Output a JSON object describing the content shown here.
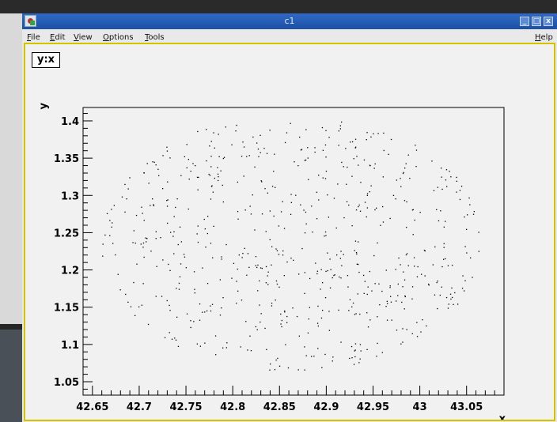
{
  "window": {
    "title": "c1",
    "minimize_label": "_",
    "maximize_label": "□",
    "close_label": "x"
  },
  "menubar": {
    "file": {
      "u": "F",
      "rest": "ile"
    },
    "edit": {
      "u": "E",
      "rest": "dit"
    },
    "view": {
      "u": "V",
      "rest": "iew"
    },
    "options": {
      "u": "O",
      "rest": "ptions"
    },
    "tools": {
      "u": "T",
      "rest": "ools"
    },
    "help": {
      "u": "H",
      "rest": "elp"
    }
  },
  "canvas": {
    "frame_color": "#d4c400",
    "pad_color": "#f1f1f1"
  },
  "chart_data": {
    "type": "scatter",
    "title": "y:x",
    "xlabel": "x",
    "ylabel": "y",
    "xlim": [
      42.64,
      43.09
    ],
    "ylim": [
      1.032,
      1.418
    ],
    "x_ticks": [
      "42.65",
      "42.7",
      "42.75",
      "42.8",
      "42.85",
      "42.9",
      "42.95",
      "43",
      "43.05"
    ],
    "y_ticks": [
      "1.05",
      "1.1",
      "1.15",
      "1.2",
      "1.25",
      "1.3",
      "1.35",
      "1.4"
    ],
    "point_color": "#000000",
    "point_count": 650,
    "x_range_of_points": [
      42.66,
      43.065
    ],
    "y_range_of_points": [
      1.055,
      1.4
    ]
  }
}
